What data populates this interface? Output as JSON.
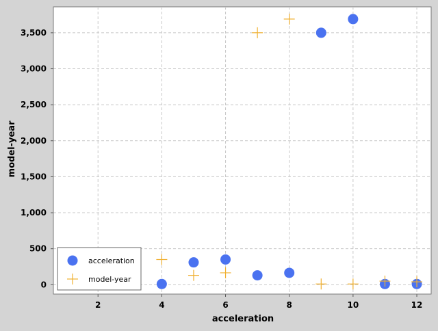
{
  "chart_data": {
    "type": "scatter",
    "title": "",
    "xlabel": "acceleration",
    "ylabel": "model-year",
    "xlim": [
      0.6,
      12.45
    ],
    "ylim": [
      -130,
      3860
    ],
    "x_ticks": [
      2,
      4,
      6,
      8,
      10,
      12
    ],
    "x_tick_labels": [
      "2",
      "4",
      "6",
      "8",
      "10",
      "12"
    ],
    "y_ticks": [
      0,
      500,
      1000,
      1500,
      2000,
      2500,
      3000,
      3500
    ],
    "y_tick_labels": [
      "0",
      "500",
      "1,000",
      "1,500",
      "2,000",
      "2,500",
      "3,000",
      "3,500"
    ],
    "grid": true,
    "legend_position": "bottom-left",
    "series": [
      {
        "name": "acceleration",
        "marker": "circle",
        "color": "#4a72f0",
        "points": [
          {
            "x": 4,
            "y": 10
          },
          {
            "x": 5,
            "y": 310
          },
          {
            "x": 6,
            "y": 350
          },
          {
            "x": 7,
            "y": 130
          },
          {
            "x": 8,
            "y": 165
          },
          {
            "x": 9,
            "y": 3500
          },
          {
            "x": 10,
            "y": 3690
          },
          {
            "x": 11,
            "y": 10
          },
          {
            "x": 12,
            "y": 10
          }
        ]
      },
      {
        "name": "model-year",
        "marker": "plus",
        "color": "#f0b030",
        "points": [
          {
            "x": 4,
            "y": 350
          },
          {
            "x": 5,
            "y": 130
          },
          {
            "x": 6,
            "y": 165
          },
          {
            "x": 7,
            "y": 3500
          },
          {
            "x": 8,
            "y": 3690
          },
          {
            "x": 9,
            "y": 10
          },
          {
            "x": 10,
            "y": 10
          },
          {
            "x": 11,
            "y": 50
          },
          {
            "x": 12,
            "y": 40
          }
        ]
      }
    ]
  }
}
